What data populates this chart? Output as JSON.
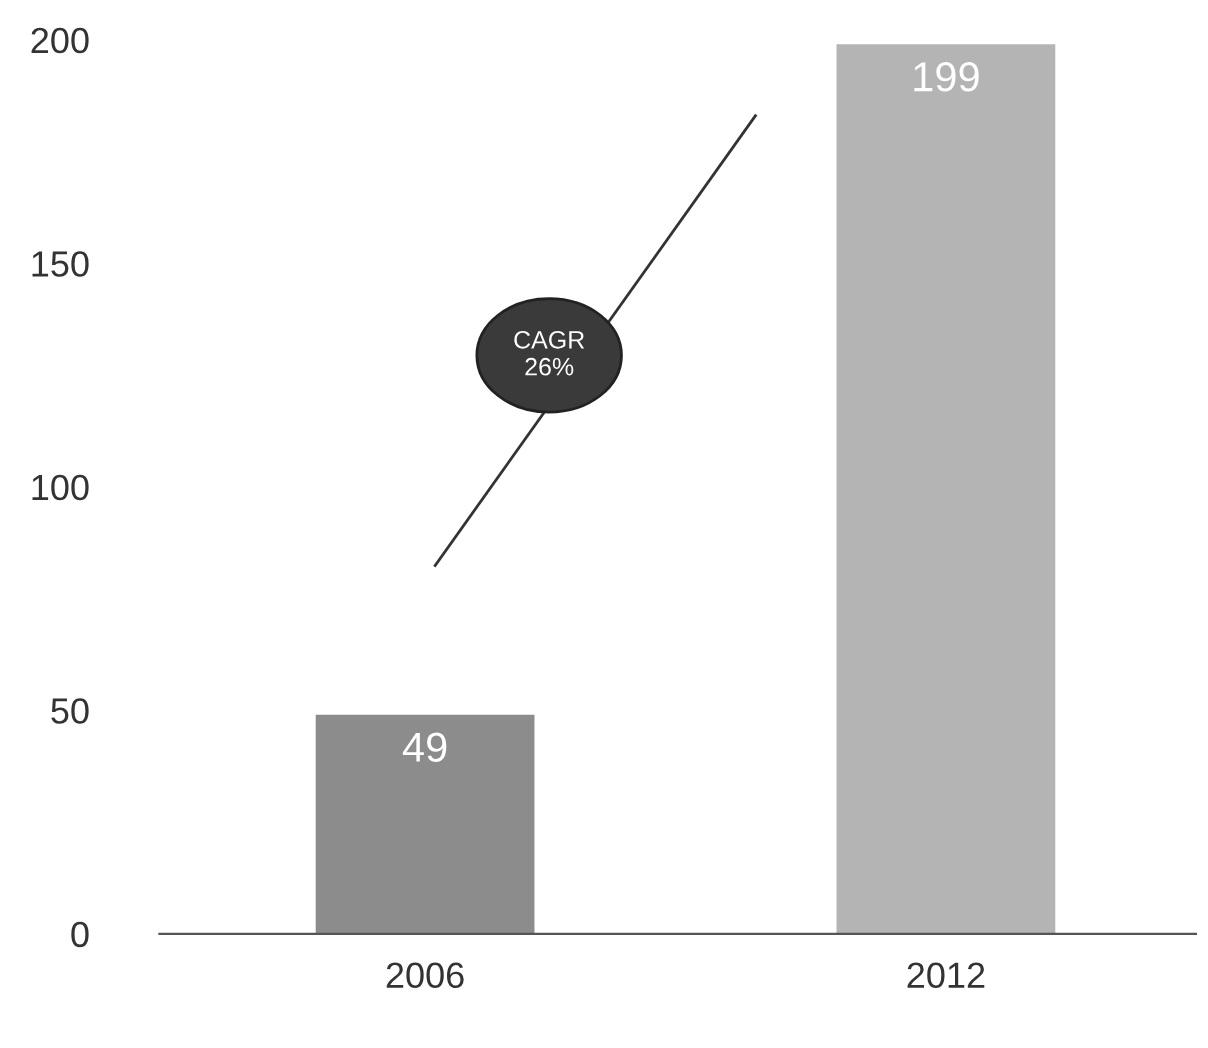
{
  "chart_data": {
    "type": "bar",
    "categories": [
      "2006",
      "2012"
    ],
    "values": [
      49,
      199
    ],
    "colors": [
      "#8c8c8c",
      "#b4b4b4"
    ],
    "ylim": [
      0,
      200
    ],
    "yticks": [
      0,
      50,
      100,
      150,
      200
    ],
    "data_labels": true,
    "grid": false,
    "legend": false,
    "annotations": [
      "CAGR\n26%"
    ]
  }
}
